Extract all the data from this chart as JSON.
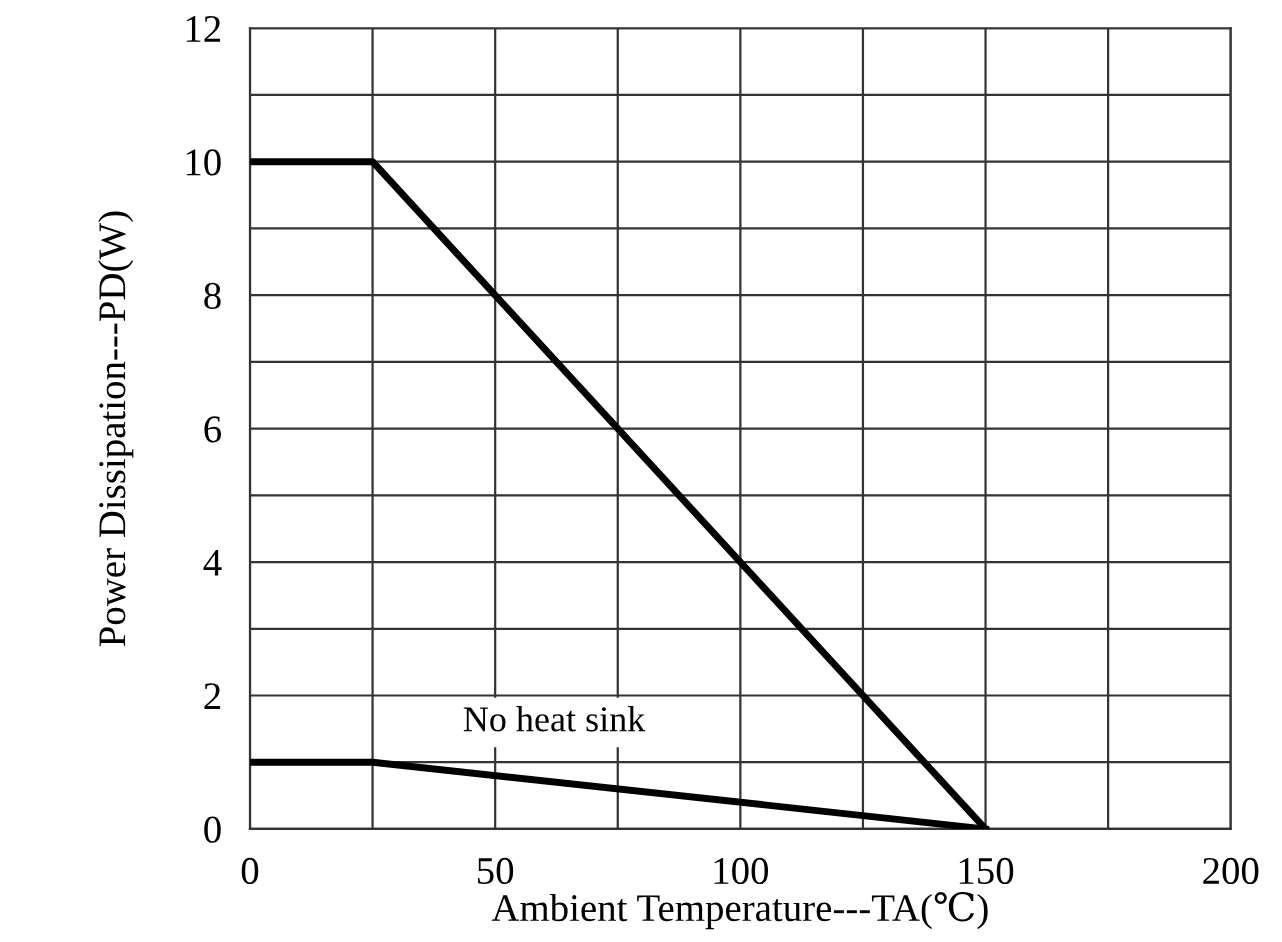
{
  "chart_data": {
    "type": "line",
    "xlabel": "Ambient Temperature---TA(℃)",
    "ylabel": "Power Dissipation---PD(W)",
    "series": [
      {
        "color": "#000000",
        "x": [
          0,
          25,
          150
        ],
        "values": [
          10,
          10,
          0
        ]
      },
      {
        "color": "#000000",
        "x": [
          0,
          25,
          150
        ],
        "values": [
          1,
          1,
          0
        ]
      }
    ],
    "annotations": [
      "No heat sink"
    ],
    "xlim": [
      0,
      200
    ],
    "ylim": [
      0,
      12
    ],
    "xticks": [
      0,
      {
        "value": 25,
        "label": null
      },
      50,
      {
        "value": 75,
        "label": null
      },
      100,
      {
        "value": 125,
        "label": null
      },
      150,
      {
        "value": 175,
        "label": null
      },
      200
    ],
    "yticks": [
      0,
      {
        "value": 1,
        "label": null
      },
      2,
      {
        "value": 3,
        "label": null
      },
      4,
      {
        "value": 5,
        "label": null
      },
      6,
      {
        "value": 7,
        "label": null
      },
      8,
      {
        "value": 9,
        "label": null
      },
      10,
      {
        "value": 11,
        "label": null
      },
      12
    ],
    "grid": true,
    "marker": "none",
    "line_style": "solid"
  }
}
